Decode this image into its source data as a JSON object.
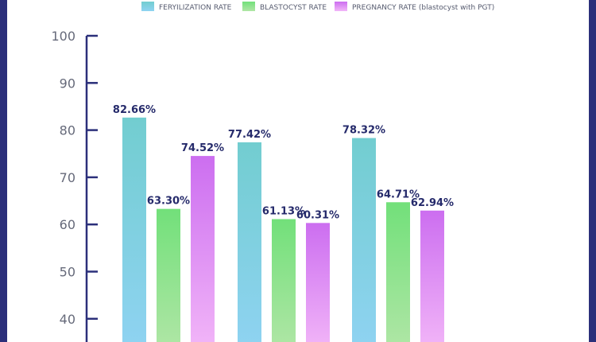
{
  "chart_data": {
    "type": "bar",
    "title": "",
    "xlabel": "",
    "ylabel": "",
    "ylim": [
      35,
      100
    ],
    "yticks": [
      100,
      90,
      80,
      70,
      60,
      50,
      40
    ],
    "categories": [
      "",
      "",
      ""
    ],
    "series": [
      {
        "name": "FERYILIZATION RATE",
        "values": [
          82.66,
          77.42,
          78.32
        ],
        "labels": [
          "82.66%",
          "77.42%",
          "78.32%"
        ]
      },
      {
        "name": "BLASTOCYST RATE",
        "values": [
          63.3,
          61.13,
          64.71
        ],
        "labels": [
          "63.30%",
          "61.13%",
          "64.71%"
        ]
      },
      {
        "name": "PREGNANCY RATE (blastocyst with PGT)",
        "values": [
          74.52,
          60.31,
          62.94
        ],
        "labels": [
          "74.52%",
          "60.31%",
          "62.94%"
        ]
      }
    ],
    "colors": [
      [
        "#72cdd0",
        "#8fd3f2"
      ],
      [
        "#72e07a",
        "#b0e6a6"
      ],
      [
        "#cc6ef0",
        "#f2b6f8"
      ]
    ],
    "axis_color": "#2b2f7a",
    "legend_position": "top-center",
    "grid": false
  }
}
